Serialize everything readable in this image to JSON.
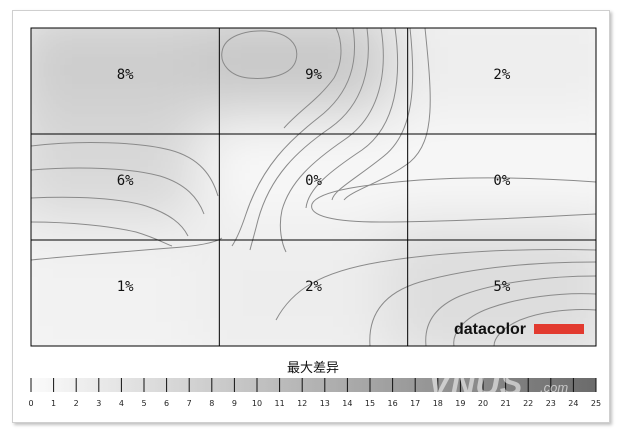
{
  "chart_data": {
    "type": "heatmap",
    "rows": 3,
    "cols": 3,
    "values": [
      [
        "8%",
        "9%",
        "2%"
      ],
      [
        "6%",
        "0%",
        "0%"
      ],
      [
        "1%",
        "2%",
        "5%"
      ]
    ],
    "shade": [
      [
        8,
        9,
        2
      ],
      [
        6,
        0,
        0
      ],
      [
        1,
        2,
        5
      ]
    ],
    "scale_title": "最大差异",
    "scale_min": 0,
    "scale_max": 25,
    "scale_ticks": [
      "0",
      "1",
      "2",
      "3",
      "4",
      "5",
      "6",
      "7",
      "8",
      "9",
      "10",
      "11",
      "12",
      "13",
      "14",
      "15",
      "16",
      "17",
      "18",
      "19",
      "20",
      "21",
      "22",
      "23",
      "24",
      "25"
    ],
    "grid": true
  },
  "brand": {
    "logo_text": "datacolor",
    "logo_accent": "#e23a2f",
    "watermark": "VNUS",
    "watermark_suffix": ".com"
  },
  "colors": {
    "scale_light": "#fbfbfb",
    "scale_dark": "#6b6b6b",
    "grid_line": "#000000",
    "contour_line": "#8a8a8a"
  }
}
